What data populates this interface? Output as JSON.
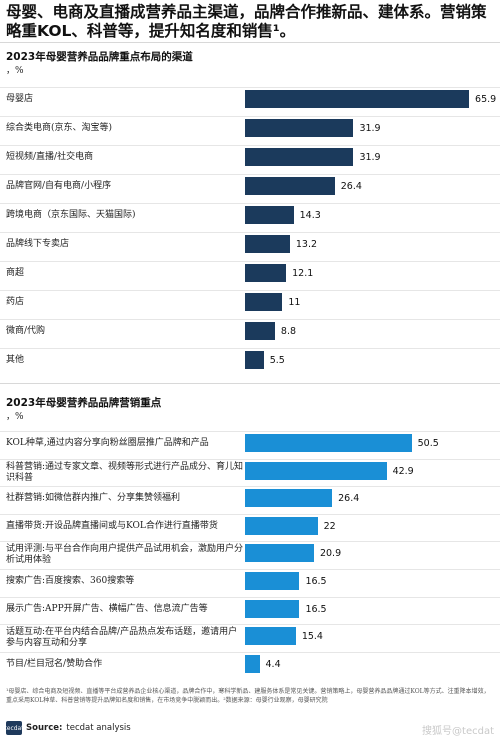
{
  "headline": "母婴、电商及直播成营养品主渠道，品牌合作推新品、建体系。营销策略重KOL、科普等，提升知名度和销售¹。",
  "chart_data": [
    {
      "type": "bar",
      "orientation": "horizontal",
      "title": "2023年母婴营养品品牌重点布局的渠道",
      "unit": "，%",
      "color": "#1b3a5c",
      "categories": [
        "母婴店",
        "综合类电商(京东、淘宝等)",
        "短视频/直播/社交电商",
        "品牌官网/自有电商/小程序",
        "跨境电商（京东国际、天猫国际)",
        "品牌线下专卖店",
        "商超",
        "药店",
        "微商/代购",
        "其他"
      ],
      "values": [
        65.9,
        31.9,
        31.9,
        26.4,
        14.3,
        13.2,
        12.1,
        11,
        8.8,
        5.5
      ],
      "value_labels": [
        "65.9",
        "31.9",
        "31.9",
        "26.4",
        "14.3",
        "13.2",
        "12.1",
        "11",
        "8.8",
        "5.5"
      ]
    },
    {
      "type": "bar",
      "orientation": "horizontal",
      "title": "2023年母婴营养品品牌营销重点",
      "unit": "，%",
      "color": "#1a8fd6",
      "categories": [
        "KOL种草,通过内容分享向粉丝圈层推广品牌和产品",
        "科普营销:通过专家文章、视频等形式进行产品成分、育儿知识科普",
        "社群营销:如微信群内推广、分享集赞领福利",
        "直播带货:开设品牌直播间或与KOL合作进行直播带货",
        "试用评测:与平台合作向用户提供产品试用机会，激励用户分析试用体验",
        "搜索广告:百度搜索、360搜索等",
        "展示广告:APP开屏广告、横幅广告、信息流广告等",
        "话题互动:在平台内结合品牌/产品热点发布话题，邀请用户参与内容互动和分享",
        "节目/栏目冠名/赞助合作"
      ],
      "values": [
        50.5,
        42.9,
        26.4,
        22,
        20.9,
        16.5,
        16.5,
        15.4,
        4.4
      ],
      "value_labels": [
        "50.5",
        "42.9",
        "26.4",
        "22",
        "20.9",
        "16.5",
        "16.5",
        "15.4",
        "4.4"
      ]
    }
  ],
  "footnote": "¹母婴店、综合电商及短视频、直播等平台成营养品企业核心渠道，品牌合作中，寒科学新品、建服务体系是常见关键。营销策略上，母婴营养品品牌通过KOL等方式、注重降本增效，重点采用KOL种草、科普营销等提升品牌知名度和销售，在市场竞争中脱颖而出。²数据来源：母婴行业观察，母婴研究院",
  "source": {
    "icon": "tecdat",
    "label": "Source:",
    "text": "tecdat analysis"
  },
  "watermark": "搜狐号@tecdat"
}
